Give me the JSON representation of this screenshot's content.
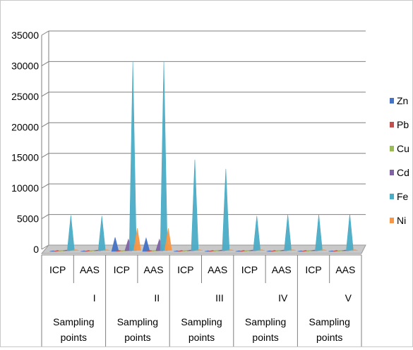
{
  "chart_data": {
    "type": "area",
    "title": "",
    "xlabel": "",
    "ylabel": "",
    "ylim": [
      0,
      35000
    ],
    "yticks": [
      0,
      5000,
      10000,
      15000,
      20000,
      25000,
      30000,
      35000
    ],
    "grid": true,
    "legend_position": "right",
    "groups": [
      {
        "numeral": "I",
        "label": "Sampling points",
        "methods": [
          "ICP",
          "AAS"
        ]
      },
      {
        "numeral": "II",
        "label": "Sampling points",
        "methods": [
          "ICP",
          "AAS"
        ]
      },
      {
        "numeral": "III",
        "label": "Sampling points",
        "methods": [
          "ICP",
          "AAS"
        ]
      },
      {
        "numeral": "IV",
        "label": "Sampling points",
        "methods": [
          "ICP",
          "AAS"
        ]
      },
      {
        "numeral": "V",
        "label": "Sampling points",
        "methods": [
          "ICP",
          "AAS"
        ]
      }
    ],
    "categories": [
      "I ICP",
      "I AAS",
      "II ICP",
      "II AAS",
      "III ICP",
      "III AAS",
      "IV ICP",
      "IV AAS",
      "V ICP",
      "V AAS"
    ],
    "series": [
      {
        "name": "Zn",
        "color": "#4472c4",
        "values": [
          100,
          100,
          2300,
          2200,
          100,
          100,
          100,
          100,
          100,
          100
        ]
      },
      {
        "name": "Pb",
        "color": "#c0504d",
        "values": [
          20,
          20,
          30,
          30,
          20,
          20,
          20,
          20,
          20,
          20
        ]
      },
      {
        "name": "Cu",
        "color": "#9bbb59",
        "values": [
          30,
          30,
          60,
          60,
          30,
          30,
          30,
          30,
          30,
          30
        ]
      },
      {
        "name": "Cd",
        "color": "#8064a2",
        "values": [
          10,
          10,
          2000,
          2000,
          10,
          10,
          10,
          10,
          10,
          10
        ]
      },
      {
        "name": "Fe",
        "color": "#4bacc6",
        "values": [
          5900,
          5800,
          31000,
          31000,
          15000,
          13500,
          5800,
          6000,
          6000,
          6100
        ]
      },
      {
        "name": "Ni",
        "color": "#f79646",
        "values": [
          100,
          100,
          3800,
          3800,
          100,
          100,
          100,
          100,
          100,
          100
        ]
      }
    ]
  }
}
